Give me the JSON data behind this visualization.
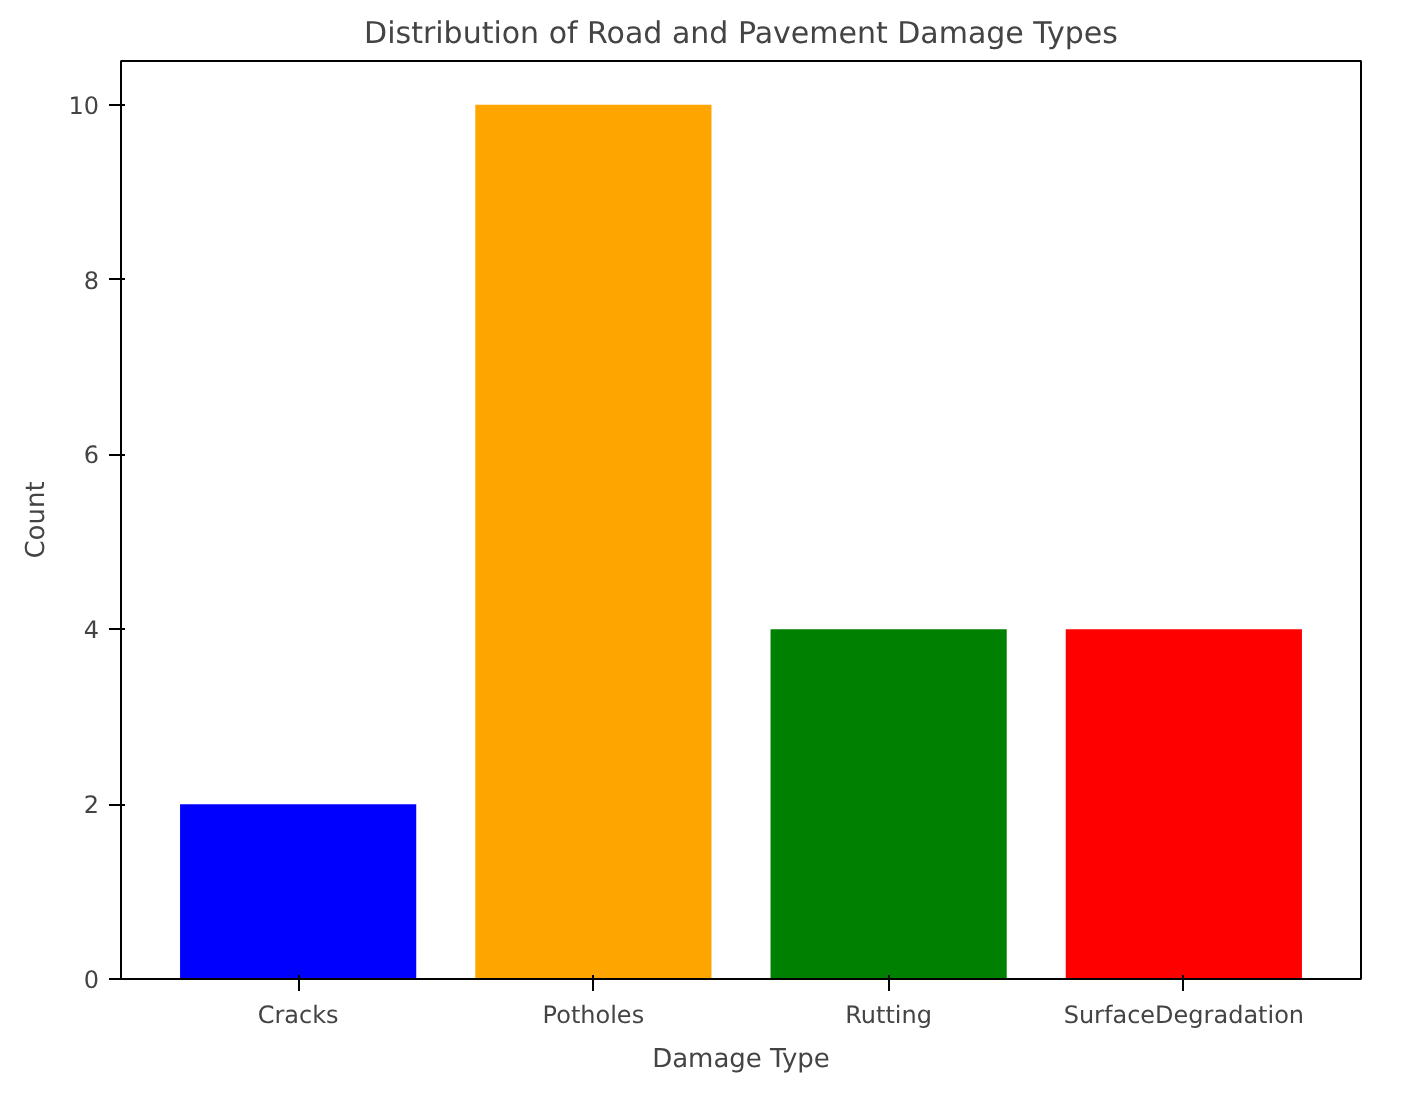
{
  "chart_data": {
    "type": "bar",
    "title": "Distribution of Road and Pavement Damage Types",
    "xlabel": "Damage Type",
    "ylabel": "Count",
    "categories": [
      "Cracks",
      "Potholes",
      "Rutting",
      "SurfaceDegradation"
    ],
    "values": [
      2,
      10,
      4,
      4
    ],
    "colors": [
      "#0000ff",
      "#ffa500",
      "#008000",
      "#ff0000"
    ],
    "ylim": [
      0,
      10.5
    ],
    "yticks": [
      0,
      2,
      4,
      6,
      8,
      10
    ],
    "grid": false
  }
}
